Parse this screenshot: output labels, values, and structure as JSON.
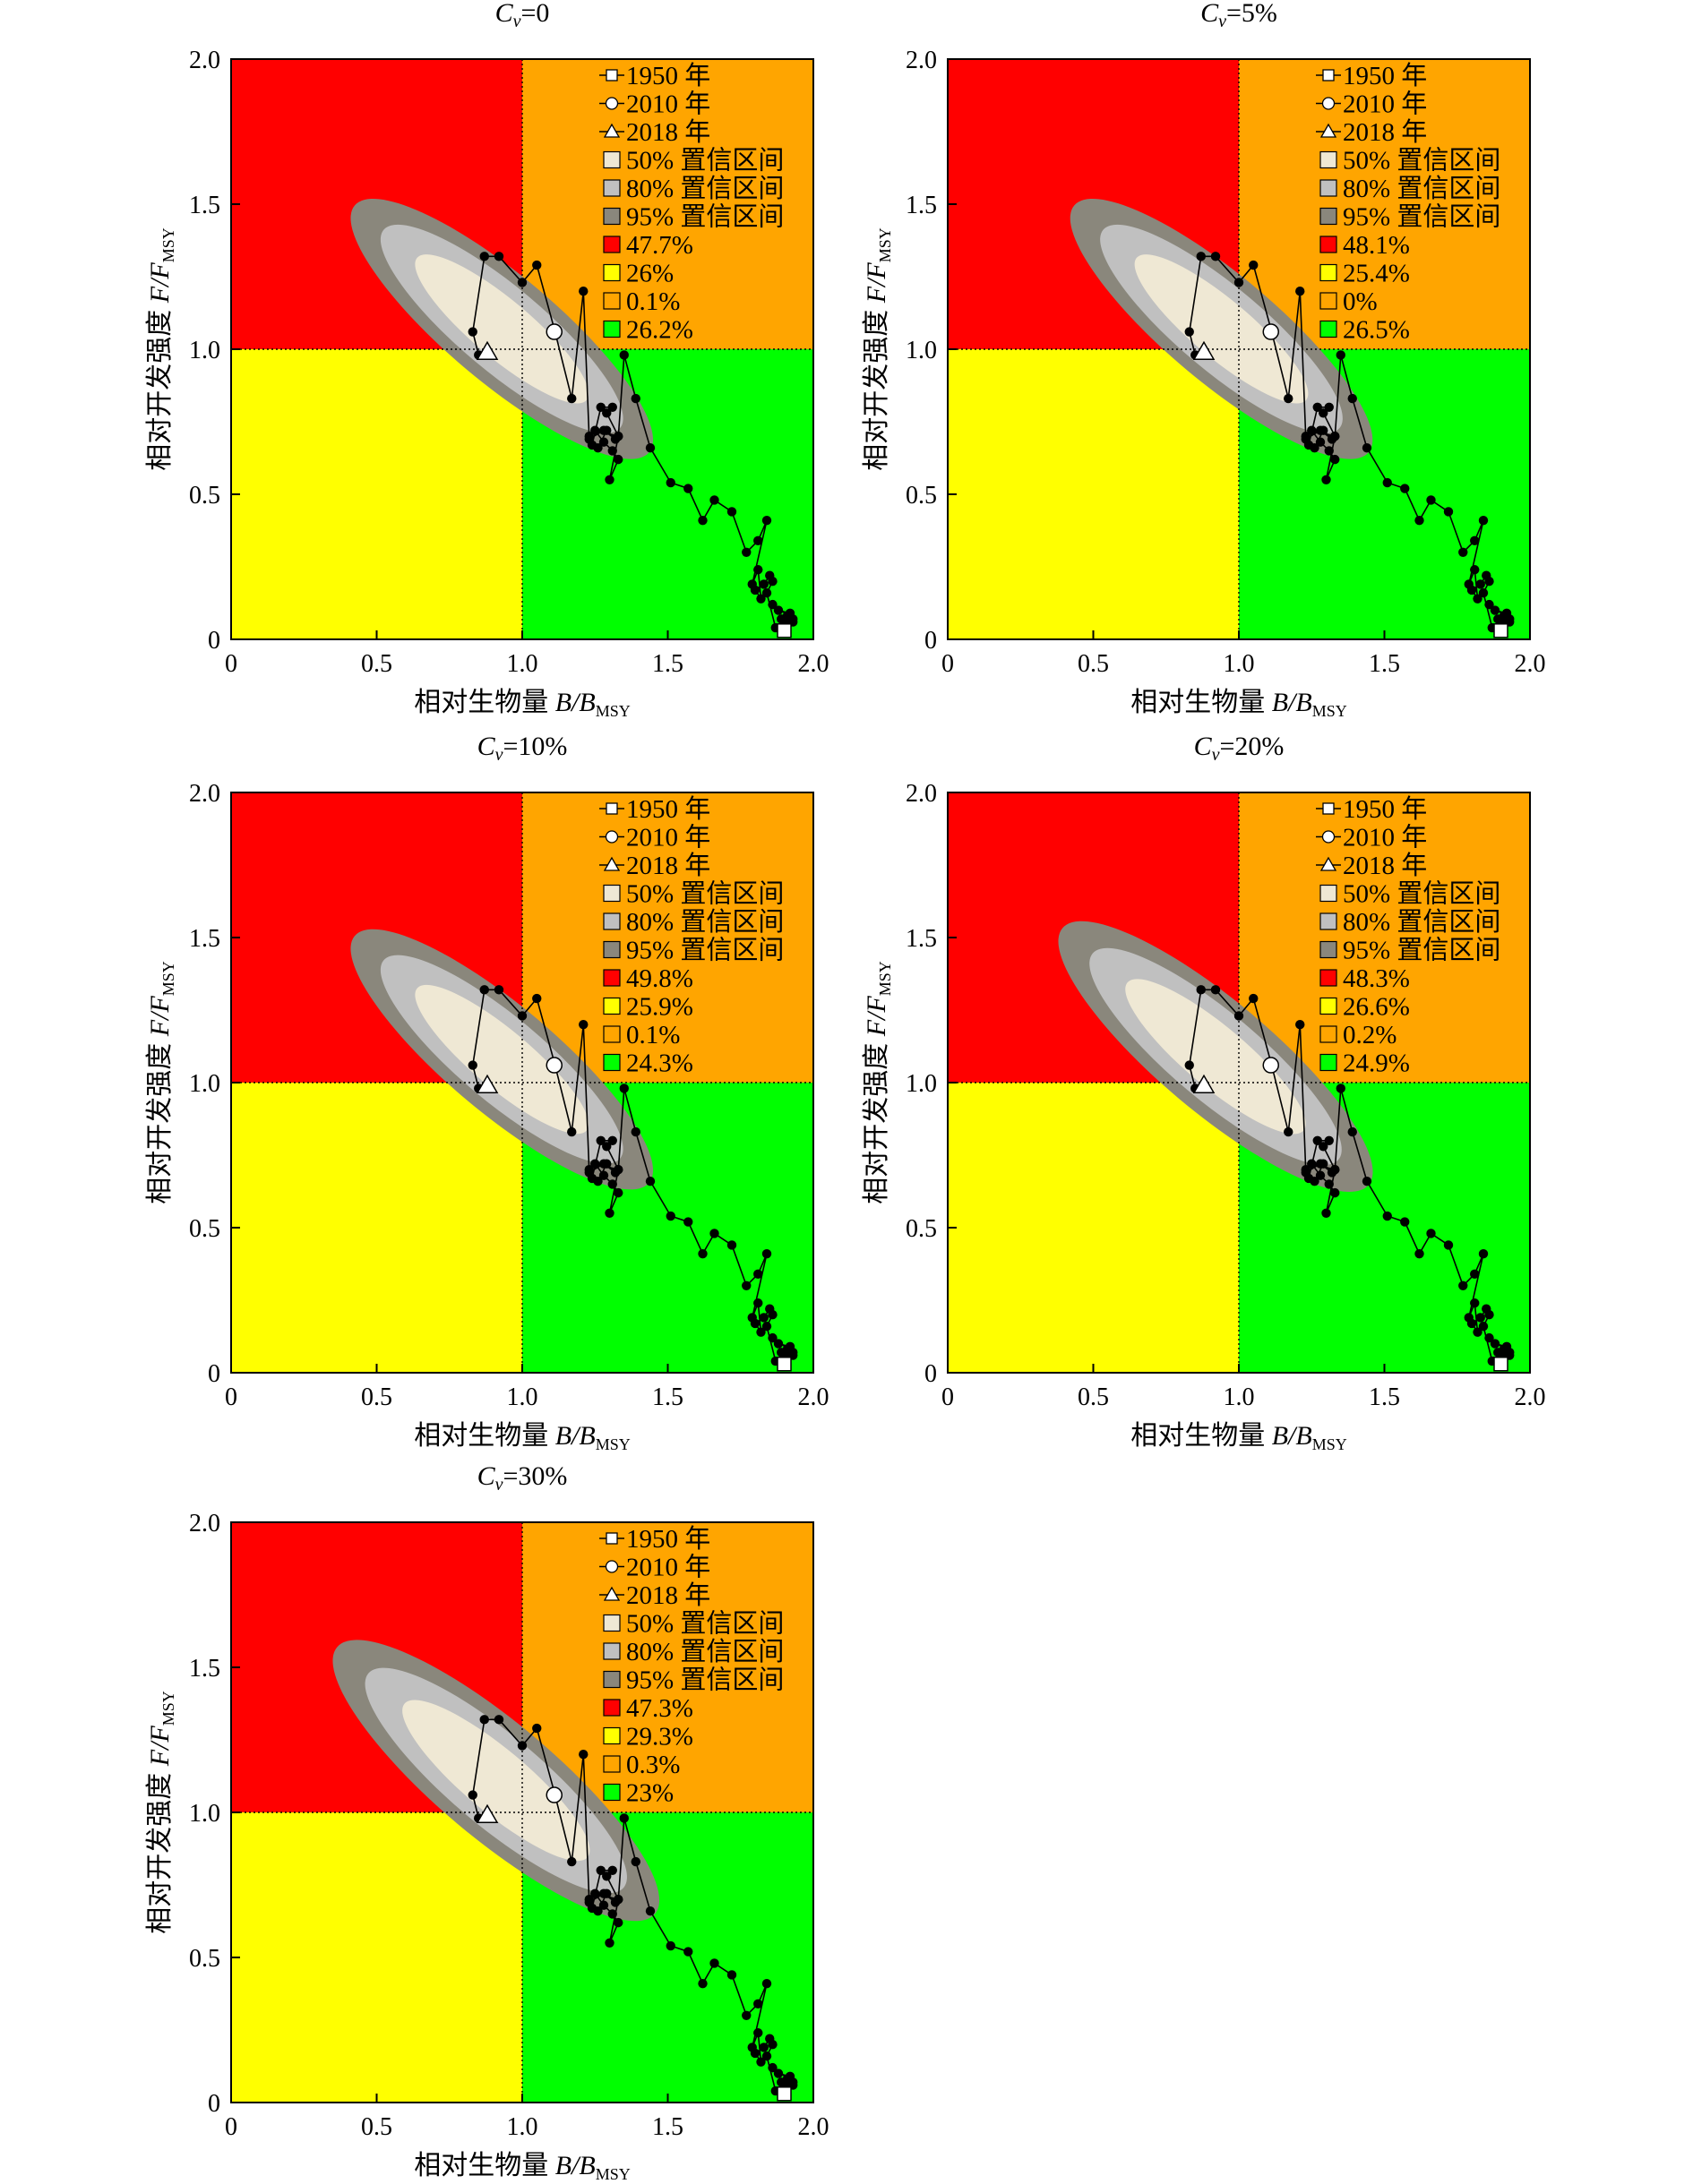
{
  "figure": {
    "xlabel_cn": "相对生物量",
    "xlabel_sym": "B",
    "xlabel_sub": "MSY",
    "ylabel_cn": "相对开发强度",
    "ylabel_sym": "F",
    "ylabel_sub": "MSY"
  },
  "colors": {
    "red_quadrant": "#ff0000",
    "orange_quadrant": "#ffa500",
    "yellow_quadrant": "#ffff00",
    "green_quadrant": "#00ff00",
    "ci50": "#efe8d4",
    "ci80": "#c0c0c0",
    "ci95": "#8a877c"
  },
  "legend_labels": [
    "1950 年",
    "2010 年",
    "2018 年",
    "50% 置信区间",
    "80% 置信区间",
    "95% 置信区间"
  ],
  "chart_data": [
    {
      "type": "scatter",
      "title": "Cv=0",
      "title_sym": "C",
      "title_sub": "v",
      "title_rest": "=0",
      "xlim": [
        0,
        2
      ],
      "ylim": [
        0,
        2
      ],
      "xticks": [
        "0",
        "0.5",
        "1.0",
        "1.5",
        "2.0"
      ],
      "yticks": [
        "0",
        "0.5",
        "1.0",
        "1.5",
        "2.0"
      ],
      "quadrant_percent": [
        "47.7%",
        "26%",
        "0.1%",
        "26.2%"
      ],
      "ci_offset": [
        0,
        0
      ],
      "ci_scale": 1.0
    },
    {
      "type": "scatter",
      "title": "Cv=5%",
      "title_sym": "C",
      "title_sub": "v",
      "title_rest": "=5%",
      "xlim": [
        0,
        2
      ],
      "ylim": [
        0,
        2
      ],
      "xticks": [
        "0",
        "0.5",
        "1.0",
        "1.5",
        "2.0"
      ],
      "yticks": [
        "0",
        "0.5",
        "1.0",
        "1.5",
        "2.0"
      ],
      "quadrant_percent": [
        "48.1%",
        "25.4%",
        "0%",
        "26.5%"
      ],
      "ci_offset": [
        0.01,
        0
      ],
      "ci_scale": 1.0
    },
    {
      "type": "scatter",
      "title": "Cv=10%",
      "title_sym": "C",
      "title_sub": "v",
      "title_rest": "=10%",
      "xlim": [
        0,
        2
      ],
      "ylim": [
        0,
        2
      ],
      "xticks": [
        "0",
        "0.5",
        "1.0",
        "1.5",
        "2.0"
      ],
      "yticks": [
        "0",
        "0.5",
        "1.0",
        "1.5",
        "2.0"
      ],
      "quadrant_percent": [
        "49.8%",
        "25.9%",
        "0.1%",
        "24.3%"
      ],
      "ci_offset": [
        0,
        0.01
      ],
      "ci_scale": 1.0
    },
    {
      "type": "scatter",
      "title": "Cv=20%",
      "title_sym": "C",
      "title_sub": "v",
      "title_rest": "=20%",
      "xlim": [
        0,
        2
      ],
      "ylim": [
        0,
        2
      ],
      "xticks": [
        "0",
        "0.5",
        "1.0",
        "1.5",
        "2.0"
      ],
      "yticks": [
        "0",
        "0.5",
        "1.0",
        "1.5",
        "2.0"
      ],
      "quadrant_percent": [
        "48.3%",
        "26.6%",
        "0.2%",
        "24.9%"
      ],
      "ci_offset": [
        -0.01,
        0.02
      ],
      "ci_scale": 1.04
    },
    {
      "type": "scatter",
      "title": "Cv=30%",
      "title_sym": "C",
      "title_sub": "v",
      "title_rest": "=30%",
      "xlim": [
        0,
        2
      ],
      "ylim": [
        0,
        2
      ],
      "xticks": [
        "0",
        "0.5",
        "1.0",
        "1.5",
        "2.0"
      ],
      "yticks": [
        "0",
        "0.5",
        "1.0",
        "1.5",
        "2.0"
      ],
      "quadrant_percent": [
        "47.3%",
        "29.3%",
        "0.3%",
        "23%"
      ],
      "ci_offset": [
        -0.02,
        0.04
      ],
      "ci_scale": 1.08
    }
  ],
  "trajectory": {
    "x": [
      1.9,
      1.93,
      1.91,
      1.89,
      1.92,
      1.88,
      1.86,
      1.93,
      1.91,
      1.89,
      1.87,
      1.84,
      1.86,
      1.85,
      1.83,
      1.8,
      1.82,
      1.81,
      1.79,
      1.84,
      1.81,
      1.77,
      1.72,
      1.66,
      1.62,
      1.57,
      1.51,
      1.44,
      1.39,
      1.35,
      1.33,
      1.3,
      1.33,
      1.31,
      1.28,
      1.25,
      1.33,
      1.29,
      1.31,
      1.27,
      1.24,
      1.23,
      1.26,
      1.29,
      1.32,
      1.28,
      1.23,
      1.21,
      1.17,
      1.11,
      1.05,
      1.0,
      0.92,
      0.87,
      0.83,
      0.85
    ],
    "y": [
      0.05,
      0.06,
      0.08,
      0.07,
      0.09,
      0.1,
      0.12,
      0.07,
      0.05,
      0.04,
      0.04,
      0.16,
      0.2,
      0.22,
      0.19,
      0.17,
      0.14,
      0.24,
      0.19,
      0.41,
      0.34,
      0.3,
      0.44,
      0.48,
      0.41,
      0.52,
      0.54,
      0.66,
      0.83,
      0.98,
      0.7,
      0.55,
      0.62,
      0.65,
      0.68,
      0.72,
      0.7,
      0.78,
      0.8,
      0.8,
      0.67,
      0.7,
      0.66,
      0.72,
      0.69,
      0.72,
      0.69,
      1.2,
      0.83,
      1.07,
      1.29,
      1.23,
      1.32,
      1.32,
      1.06,
      0.98
    ],
    "year_1950": [
      1.9,
      0.03
    ],
    "year_2010": [
      1.11,
      1.06
    ],
    "year_2018": [
      0.88,
      0.99
    ]
  }
}
